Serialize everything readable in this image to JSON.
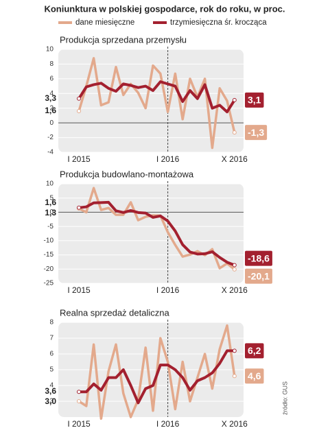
{
  "title": "Koniunktura w polskiej gospodarce, rok do roku, w proc.",
  "source": "źródło: GUS",
  "chart_data": [
    {
      "type": "line",
      "title": "Produkcja sprzedana przemysłu",
      "categories": [
        "I 2015",
        null,
        null,
        null,
        null,
        null,
        null,
        null,
        null,
        null,
        null,
        null,
        "I 2016",
        null,
        null,
        null,
        null,
        null,
        null,
        null,
        null,
        "X 2016"
      ],
      "series": [
        {
          "name": "dane miesięczne",
          "color": "#e3a98c",
          "values": [
            1.6,
            5.0,
            8.8,
            2.4,
            2.8,
            7.6,
            3.8,
            5.3,
            4.1,
            2.0,
            7.8,
            6.7,
            1.5,
            6.7,
            0.5,
            6.0,
            3.5,
            6.0,
            -3.4,
            4.7,
            3.0,
            -1.3
          ],
          "value_labels": [
            "1,6",
            null,
            null,
            null,
            null,
            null,
            null,
            null,
            null,
            null,
            null,
            null,
            null,
            null,
            null,
            null,
            null,
            null,
            null,
            null,
            null,
            "-1,3"
          ]
        },
        {
          "name": "trzymiesięczna śr. krocząca",
          "color": "#a3202f",
          "values": [
            3.3,
            4.9,
            5.2,
            5.4,
            4.7,
            4.3,
            5.3,
            5.1,
            4.8,
            5.0,
            4.4,
            5.6,
            5.3,
            5.0,
            2.9,
            4.4,
            3.3,
            5.2,
            2.0,
            2.4,
            1.5,
            3.1
          ],
          "value_labels": [
            "3,3",
            null,
            null,
            null,
            null,
            null,
            null,
            null,
            null,
            null,
            null,
            null,
            null,
            null,
            null,
            null,
            null,
            null,
            null,
            null,
            null,
            "3,1"
          ]
        }
      ],
      "ylim": [
        -4,
        10
      ],
      "yticks": [
        -4,
        -2,
        0,
        2,
        4,
        6,
        8,
        10
      ],
      "grid": true
    },
    {
      "type": "line",
      "title": "Produkcja budowlano-montażowa",
      "categories": [
        "I 2015",
        null,
        null,
        null,
        null,
        null,
        null,
        null,
        null,
        null,
        null,
        null,
        "I 2016",
        null,
        null,
        null,
        null,
        null,
        null,
        null,
        null,
        "X 2016"
      ],
      "series": [
        {
          "name": "dane miesięczne",
          "color": "#e3a98c",
          "values": [
            1.3,
            0.0,
            8.5,
            0.8,
            1.5,
            -0.9,
            -0.9,
            3.5,
            -2.8,
            -1.6,
            -1.1,
            -1.2,
            -7.0,
            -11.5,
            -15.6,
            -14.9,
            -13.7,
            -15.1,
            -13.0,
            -19.7,
            -18.0,
            -20.1
          ],
          "value_labels": [
            "1,3",
            null,
            null,
            null,
            null,
            null,
            null,
            null,
            null,
            null,
            null,
            null,
            null,
            null,
            null,
            null,
            null,
            null,
            null,
            null,
            null,
            "-20,1"
          ]
        },
        {
          "name": "trzymiesięczna śr. krocząca",
          "color": "#a3202f",
          "values": [
            1.6,
            1.9,
            3.3,
            3.4,
            3.5,
            0.5,
            -0.1,
            0.6,
            -0.1,
            -0.3,
            -1.8,
            -1.3,
            -3.1,
            -6.6,
            -11.4,
            -14.0,
            -14.7,
            -14.6,
            -13.9,
            -15.9,
            -17.6,
            -18.6
          ],
          "value_labels": [
            "1,6",
            null,
            null,
            null,
            null,
            null,
            null,
            null,
            null,
            null,
            null,
            null,
            null,
            null,
            null,
            null,
            null,
            null,
            null,
            null,
            null,
            "-18,6"
          ]
        }
      ],
      "ylim": [
        -25,
        10
      ],
      "yticks": [
        -25,
        -20,
        -15,
        -10,
        -5,
        0,
        5,
        10
      ],
      "grid": true
    },
    {
      "type": "line",
      "title": "Realna sprzedaż detaliczna",
      "categories": [
        "I 2015",
        null,
        null,
        null,
        null,
        null,
        null,
        null,
        null,
        null,
        null,
        null,
        "I 2016",
        null,
        null,
        null,
        null,
        null,
        null,
        null,
        null,
        "X 2016"
      ],
      "series": [
        {
          "name": "dane miesięczne",
          "color": "#e3a98c",
          "values": [
            3.0,
            2.7,
            6.6,
            1.9,
            4.9,
            6.6,
            3.5,
            2.0,
            3.1,
            6.4,
            2.4,
            7.0,
            5.5,
            2.5,
            5.5,
            3.0,
            4.5,
            6.0,
            3.8,
            6.3,
            7.8,
            4.6
          ],
          "value_labels": [
            "3,0",
            null,
            null,
            null,
            null,
            null,
            null,
            null,
            null,
            null,
            null,
            null,
            null,
            null,
            null,
            null,
            null,
            null,
            null,
            null,
            null,
            "4,6"
          ]
        },
        {
          "name": "trzymiesięczna śr. krocząca",
          "color": "#a3202f",
          "values": [
            3.6,
            3.6,
            4.1,
            3.7,
            4.5,
            4.5,
            5.0,
            4.0,
            2.9,
            3.8,
            4.0,
            5.3,
            5.3,
            5.0,
            4.5,
            3.7,
            4.3,
            4.5,
            4.8,
            5.4,
            6.2,
            6.2
          ],
          "value_labels": [
            "3,6",
            null,
            null,
            null,
            null,
            null,
            null,
            null,
            null,
            null,
            null,
            null,
            null,
            null,
            null,
            null,
            null,
            null,
            null,
            null,
            null,
            "6,2"
          ]
        }
      ],
      "ylim": [
        2,
        8
      ],
      "yticks": [
        3,
        4,
        5,
        6,
        7,
        8
      ],
      "grid": true
    }
  ]
}
